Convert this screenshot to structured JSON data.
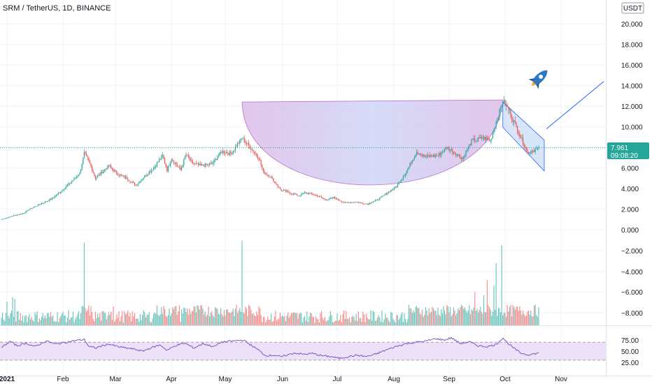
{
  "header": {
    "symbol_line": "SRM / TetherUS, 1D, BINANCE",
    "currency_label": "USDT"
  },
  "price_badge": {
    "price": "7.961",
    "countdown": "09:08:20",
    "color": "#26a69a"
  },
  "colors": {
    "up": "#26a69a",
    "down": "#ef5350",
    "cup_fill": "#c7a8e6",
    "channel_fill": "#a7c8f2",
    "arrow": "#2962ff",
    "rsi_line": "#7e57c2",
    "rsi_band": "#e8d8f8"
  },
  "chart_data": {
    "type": "candlestick",
    "price_axis": {
      "ticks": [
        "20.000",
        "18.000",
        "16.000",
        "14.000",
        "12.000",
        "10.000",
        "8.000",
        "6.000",
        "4.000",
        "2.000",
        "0.000"
      ],
      "range": [
        0,
        22
      ]
    },
    "volume_axis": {
      "ticks": [
        "−2.000",
        "−4.000",
        "−6.000",
        "−8.000"
      ]
    },
    "rsi_axis": {
      "ticks": [
        "75.00",
        "50.00",
        "25.00"
      ],
      "band": [
        30,
        70
      ]
    },
    "x_axis": {
      "labels": [
        "2021",
        "Feb",
        "Mar",
        "Apr",
        "May",
        "Jun",
        "Jul",
        "Aug",
        "Sep",
        "Oct",
        "Nov"
      ]
    },
    "price_anchors": [
      [
        0,
        1.0
      ],
      [
        12,
        1.4
      ],
      [
        20,
        1.6
      ],
      [
        25,
        2.0
      ],
      [
        33,
        2.4
      ],
      [
        45,
        3.0
      ],
      [
        55,
        3.9
      ],
      [
        64,
        4.8
      ],
      [
        70,
        5.5
      ],
      [
        74,
        7.4
      ],
      [
        78,
        6.7
      ],
      [
        84,
        5.0
      ],
      [
        90,
        5.6
      ],
      [
        96,
        6.2
      ],
      [
        104,
        5.4
      ],
      [
        112,
        5.0
      ],
      [
        120,
        4.3
      ],
      [
        128,
        5.2
      ],
      [
        136,
        6.0
      ],
      [
        144,
        7.2
      ],
      [
        148,
        5.8
      ],
      [
        152,
        6.9
      ],
      [
        160,
        5.8
      ],
      [
        165,
        7.3
      ],
      [
        170,
        6.5
      ],
      [
        178,
        6.2
      ],
      [
        188,
        6.4
      ],
      [
        197,
        7.6
      ],
      [
        205,
        7.4
      ],
      [
        215,
        8.9
      ],
      [
        230,
        7.0
      ],
      [
        234,
        5.6
      ],
      [
        240,
        5.2
      ],
      [
        250,
        3.8
      ],
      [
        255,
        3.7
      ],
      [
        260,
        3.5
      ],
      [
        266,
        3.3
      ],
      [
        271,
        3.6
      ],
      [
        280,
        3.4
      ],
      [
        290,
        2.9
      ],
      [
        297,
        3.1
      ],
      [
        307,
        2.6
      ],
      [
        316,
        2.7
      ],
      [
        327,
        2.5
      ],
      [
        336,
        2.9
      ],
      [
        345,
        3.6
      ],
      [
        353,
        4.2
      ],
      [
        362,
        5.7
      ],
      [
        371,
        7.6
      ],
      [
        378,
        7.1
      ],
      [
        390,
        7.2
      ],
      [
        398,
        8.0
      ],
      [
        412,
        6.9
      ],
      [
        420,
        8.6
      ],
      [
        430,
        8.9
      ],
      [
        437,
        8.7
      ],
      [
        440,
        9.8
      ],
      [
        448,
        12.5
      ],
      [
        453,
        11.7
      ],
      [
        462,
        9.5
      ],
      [
        470,
        7.5
      ],
      [
        480,
        7.9
      ]
    ],
    "cup": {
      "start": [
        215,
        12.4
      ],
      "end": [
        448,
        12.4
      ],
      "bottom": 2.3
    },
    "channel": {
      "start": [
        448,
        12.4
      ],
      "end": [
        480,
        8.7
      ],
      "width": 3.0
    },
    "arrow": {
      "from": [
        482,
        9.8
      ],
      "to": [
        532,
        14.4
      ]
    },
    "volume_spikes": [
      [
        74,
        8.8
      ],
      [
        215,
        9.0
      ],
      [
        447,
        8.5
      ],
      [
        442,
        6.6
      ],
      [
        434,
        4.8
      ],
      [
        440,
        4.2
      ],
      [
        423,
        3.5
      ],
      [
        431,
        3.2
      ],
      [
        5,
        2.5
      ],
      [
        10,
        3.0
      ],
      [
        12,
        2.8
      ],
      [
        100,
        2.0
      ],
      [
        150,
        1.8
      ]
    ],
    "rsi_anchors": [
      [
        0,
        58
      ],
      [
        8,
        72
      ],
      [
        14,
        62
      ],
      [
        22,
        68
      ],
      [
        30,
        60
      ],
      [
        40,
        73
      ],
      [
        48,
        66
      ],
      [
        58,
        70
      ],
      [
        66,
        74
      ],
      [
        74,
        76
      ],
      [
        78,
        61
      ],
      [
        84,
        57
      ],
      [
        90,
        62
      ],
      [
        96,
        66
      ],
      [
        104,
        60
      ],
      [
        112,
        57
      ],
      [
        120,
        54
      ],
      [
        126,
        50
      ],
      [
        134,
        58
      ],
      [
        142,
        64
      ],
      [
        148,
        52
      ],
      [
        156,
        63
      ],
      [
        164,
        68
      ],
      [
        172,
        57
      ],
      [
        180,
        67
      ],
      [
        190,
        60
      ],
      [
        196,
        70
      ],
      [
        208,
        73
      ],
      [
        216,
        75
      ],
      [
        224,
        62
      ],
      [
        230,
        52
      ],
      [
        236,
        40
      ],
      [
        244,
        41
      ],
      [
        250,
        37
      ],
      [
        256,
        42
      ],
      [
        262,
        46
      ],
      [
        270,
        43
      ],
      [
        278,
        45
      ],
      [
        286,
        40
      ],
      [
        294,
        38
      ],
      [
        302,
        34
      ],
      [
        310,
        38
      ],
      [
        318,
        41
      ],
      [
        326,
        38
      ],
      [
        334,
        43
      ],
      [
        342,
        51
      ],
      [
        352,
        60
      ],
      [
        360,
        66
      ],
      [
        370,
        70
      ],
      [
        378,
        72
      ],
      [
        388,
        78
      ],
      [
        396,
        75
      ],
      [
        402,
        80
      ],
      [
        410,
        67
      ],
      [
        418,
        71
      ],
      [
        426,
        62
      ],
      [
        434,
        60
      ],
      [
        442,
        65
      ],
      [
        448,
        80
      ],
      [
        452,
        69
      ],
      [
        458,
        56
      ],
      [
        464,
        46
      ],
      [
        470,
        42
      ],
      [
        476,
        44
      ],
      [
        480,
        46
      ]
    ]
  }
}
